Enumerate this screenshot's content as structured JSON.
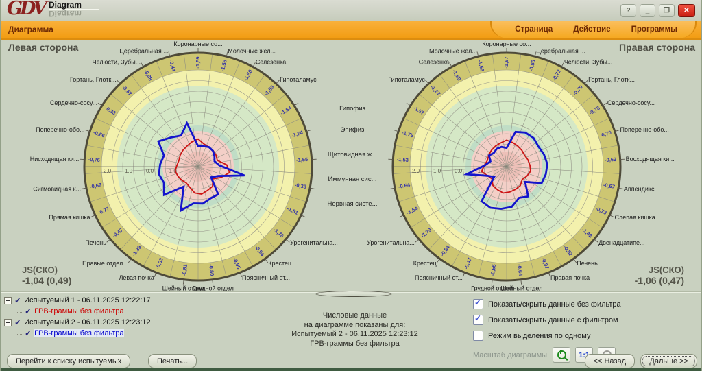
{
  "window": {
    "logo_primary": "GDV",
    "logo_secondary": "Diagram",
    "logo_reflection": "Diagram"
  },
  "window_controls": {
    "help": "?",
    "minimize": "_",
    "maximize": "❐",
    "close": "✕"
  },
  "menubar": {
    "menu": "Диаграмма",
    "tabs": [
      "Страница",
      "Действие",
      "Программы"
    ]
  },
  "headers": {
    "left": "Левая сторона",
    "right": "Правая сторона"
  },
  "js_stats": {
    "left_label": "JS(СКО)",
    "left_value": "-1,04 (0,49)",
    "right_label": "JS(СКО)",
    "right_value": "-1,06 (0,47)"
  },
  "shared_labels": [
    "Гипофиз",
    "Эпифиз",
    "Щитовидная ж...",
    "Иммунная сис...",
    "Нервная систе..."
  ],
  "chart_palette": {
    "khaki": "#cdc672",
    "yellow": "#f3f1ad",
    "green": "#d5e8c6",
    "teal": "#c0ddc6",
    "pink": "#f3cfc7",
    "core": "#edc0b8"
  },
  "chart_data": [
    {
      "type": "radar",
      "side": "Левая сторона",
      "scale_ticks": [
        "2,0",
        "1,0",
        "0,0",
        "-1,0"
      ],
      "scale_range": [
        -2,
        2
      ],
      "direction": "clockwise-from-top",
      "sectors": [
        {
          "label": "Коронарные со..."
        },
        {
          "label": "Молочные жел..."
        },
        {
          "label": "Селезенка"
        },
        {
          "label": "Гипоталамус"
        },
        {
          "label": "Гипофиз",
          "shared": true
        },
        {
          "label": "Эпифиз",
          "shared": true
        },
        {
          "label": "Щитовидная ж...",
          "shared": true
        },
        {
          "label": "Иммунная сис...",
          "shared": true
        },
        {
          "label": "Нервная систе...",
          "shared": true
        },
        {
          "label": "Урогенитальна..."
        },
        {
          "label": "Крестец"
        },
        {
          "label": "Поясничный от..."
        },
        {
          "label": "Грудной отдел"
        },
        {
          "label": "Шейный отдел"
        },
        {
          "label": "Левая почка"
        },
        {
          "label": "Правые отдел..."
        },
        {
          "label": "Печень"
        },
        {
          "label": "Прямая кишка"
        },
        {
          "label": "Сигмовидная к..."
        },
        {
          "label": "Нисходящая ки..."
        },
        {
          "label": "Поперечно-обо..."
        },
        {
          "label": "Сердечно-сосу..."
        },
        {
          "label": "Гортань, Глотк..."
        },
        {
          "label": "Челюсти, Зубы..."
        },
        {
          "label": "Церебральная ..."
        }
      ],
      "series": [
        {
          "name": "Испытуемый 1 - 06.11.2025 12:22:17 (ГРВ-граммы без фильтра)",
          "color": "#cc1414",
          "estimated": true,
          "values": [
            -1.25,
            -1.45,
            -1.5,
            -1.52,
            -1.55,
            -1.6,
            -1.2,
            -1.05,
            -1.35,
            -1.65,
            -1.4,
            -1.35,
            -1.25,
            -1.3,
            -1.5,
            -1.6,
            -1.55,
            -1.5,
            -1.45,
            -1.55,
            -1.6,
            -1.55,
            -1.5,
            -1.45,
            -1.35
          ]
        },
        {
          "name": "Испытуемый 2 - 06.11.2025 12:23:12 (ГРВ-граммы без фильтра)",
          "color": "#1414cc",
          "printed": true,
          "values": [
            -1.59,
            -1.56,
            -1.5,
            -1.53,
            -1.64,
            -1.74,
            -1.55,
            -0.33,
            -1.51,
            -1.76,
            -0.94,
            -0.95,
            -0.8,
            -0.81,
            -0.33,
            -1.39,
            -0.47,
            -0.77,
            -0.67,
            -0.76,
            -0.86,
            -0.33,
            -0.67,
            -0.88,
            -0.44
          ]
        }
      ]
    },
    {
      "type": "radar",
      "side": "Правая сторона",
      "scale_ticks": [
        "2,0",
        "1,0",
        "0,0",
        "-1,0"
      ],
      "scale_range": [
        -2,
        2
      ],
      "direction": "clockwise-from-top",
      "sectors": [
        {
          "label": "Коронарные со..."
        },
        {
          "label": "Церебральная ..."
        },
        {
          "label": "Челюсти, Зубы..."
        },
        {
          "label": "Гортань, Глотк..."
        },
        {
          "label": "Сердечно-сосу..."
        },
        {
          "label": "Поперечно-обо..."
        },
        {
          "label": "Восходящая ки..."
        },
        {
          "label": "Аппендикс"
        },
        {
          "label": "Слепая кишка"
        },
        {
          "label": "Двенадцатипе..."
        },
        {
          "label": "Печень"
        },
        {
          "label": "Правая почка"
        },
        {
          "label": "Шейный отдел"
        },
        {
          "label": "Грудной отдел"
        },
        {
          "label": "Поясничный от..."
        },
        {
          "label": "Крестец"
        },
        {
          "label": "Урогенитальна..."
        },
        {
          "label": "Нервная систе...",
          "shared": true
        },
        {
          "label": "Иммунная сис...",
          "shared": true
        },
        {
          "label": "Щитовидная ж...",
          "shared": true
        },
        {
          "label": "Эпифиз",
          "shared": true
        },
        {
          "label": "Гипофиз",
          "shared": true
        },
        {
          "label": "Гипоталамус"
        },
        {
          "label": "Селезенка"
        },
        {
          "label": "Молочные жел..."
        }
      ],
      "series": [
        {
          "name": "Испытуемый 1 - 06.11.2025 12:22:17 (ГРВ-граммы без фильтра)",
          "color": "#cc1414",
          "estimated": true,
          "values": [
            -1.3,
            -1.38,
            -1.45,
            -1.5,
            -1.55,
            -1.5,
            -1.45,
            -1.4,
            -1.5,
            -1.6,
            -1.45,
            -1.4,
            -1.35,
            -1.3,
            -1.38,
            -1.45,
            -1.65,
            -1.55,
            -1.35,
            -1.5,
            -1.6,
            -1.55,
            -1.5,
            -1.45,
            -1.4
          ]
        },
        {
          "name": "Испытуемый 2 - 06.11.2025 12:23:12 (ГРВ-граммы без фильтра)",
          "color": "#1414cc",
          "printed": true,
          "values": [
            -1.67,
            -0.86,
            -0.72,
            -0.7,
            -0.78,
            -0.7,
            -0.63,
            -0.67,
            -0.73,
            -1.42,
            -0.82,
            -0.97,
            -0.64,
            -0.55,
            -0.47,
            -0.54,
            -1.79,
            -1.54,
            -0.64,
            -1.53,
            -1.75,
            -1.57,
            -1.67,
            -1.59,
            -1.59
          ]
        }
      ]
    }
  ],
  "tree": {
    "check": "✓",
    "items": [
      {
        "label": "Испытуемый 1 - 06.11.2025 12:22:17",
        "checked": true,
        "child": {
          "label": "ГРВ-граммы без фильтра",
          "color": "#cc0000",
          "checked": true,
          "selected": false
        }
      },
      {
        "label": "Испытуемый 2 - 06.11.2025 12:23:12",
        "checked": true,
        "child": {
          "label": "ГРВ-граммы без фильтра",
          "color": "#0000cc",
          "checked": true,
          "selected": true
        }
      }
    ]
  },
  "info_text": {
    "lines": [
      "Числовые данные",
      "на диаграмме показаны для:",
      "Испытуемый 2 - 06.11.2025 12:23:12",
      "ГРВ-граммы без фильтра"
    ]
  },
  "options": {
    "check": "✓",
    "checkboxes": [
      {
        "label": "Показать/скрыть данные без фильтра",
        "checked": true
      },
      {
        "label": "Показать/скрыть данные с фильтром",
        "checked": true
      },
      {
        "label": "Режим выделения по одному",
        "checked": false
      }
    ]
  },
  "scale_control": {
    "label": "Масштаб диаграммы",
    "ratio": "1:1",
    "zoom_in": "+",
    "zoom_out": "−"
  },
  "footer_buttons": {
    "goto_list": "Перейти к списку испытуемых",
    "print": "Печать...",
    "back": "<< Назад",
    "next": "Дальше >>"
  }
}
